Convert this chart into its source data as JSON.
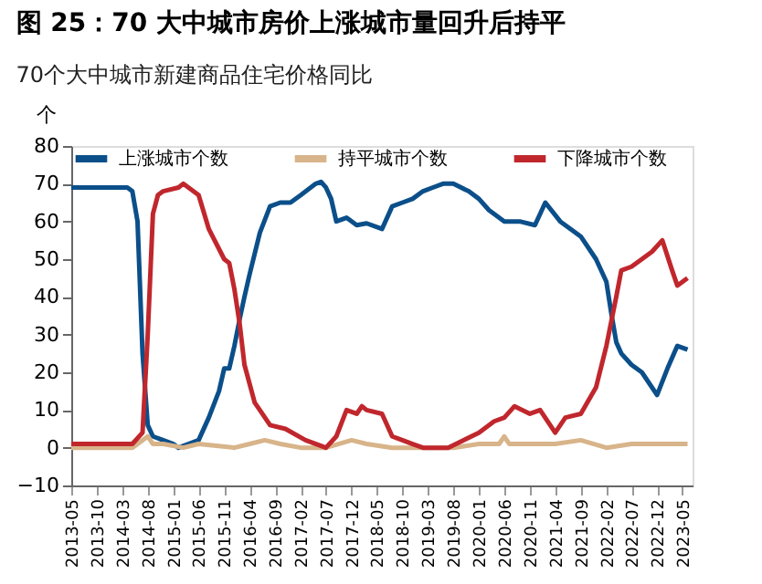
{
  "chart_data": {
    "type": "line",
    "title": "图 25：70 大中城市房价上涨城市量回升后持平",
    "subtitle": "70个大中城市新建商品住宅价格同比",
    "ylabel": "个",
    "xlim": [
      "2013-05",
      "2023-07"
    ],
    "ylim": [
      -10,
      80
    ],
    "yticks": [
      -10,
      0,
      10,
      20,
      30,
      40,
      50,
      60,
      70,
      80
    ],
    "xticks": [
      {
        "value": "2013-05",
        "label": "2013-05"
      },
      {
        "value": "2013-10",
        "label": "2013-10"
      },
      {
        "value": "2014-03",
        "label": "2014-03"
      },
      {
        "value": "2014-08",
        "label": "2014-08"
      },
      {
        "value": "2015-01",
        "label": "2015-01"
      },
      {
        "value": "2015-06",
        "label": "2015-06"
      },
      {
        "value": "2015-11",
        "label": "2015-11"
      },
      {
        "value": "2016-04",
        "label": "2016-04"
      },
      {
        "value": "2016-09",
        "label": "2016-09"
      },
      {
        "value": "2017-02",
        "label": "2017-02"
      },
      {
        "value": "2017-07",
        "label": "2017-07"
      },
      {
        "value": "2017-12",
        "label": "2017-12"
      },
      {
        "value": "2018-05",
        "label": "2018-05"
      },
      {
        "value": "2018-10",
        "label": "2018-10"
      },
      {
        "value": "2019-03",
        "label": "2019-03"
      },
      {
        "value": "2019-08",
        "label": "2019-08"
      },
      {
        "value": "2020-01",
        "label": "2020-01"
      },
      {
        "value": "2020-06",
        "label": "2020-06"
      },
      {
        "value": "2020-11",
        "label": "2020-11"
      },
      {
        "value": "2021-04",
        "label": "2021-04"
      },
      {
        "value": "2021-09",
        "label": "2021-09"
      },
      {
        "value": "2022-02",
        "label": "2022-02"
      },
      {
        "value": "2022-07",
        "label": "2022-07"
      },
      {
        "value": "2022-12",
        "label": "2022-12"
      },
      {
        "value": "2023-05",
        "label": "2023-05"
      }
    ],
    "grid": false,
    "legend": "top",
    "line_style": "solid",
    "marker": "none",
    "series": [
      {
        "name": "上涨城市个数",
        "color": "#0b4f8a",
        "x": [
          "2013-05",
          "2014-04",
          "2014-05",
          "2014-06",
          "2014-07",
          "2014-08",
          "2014-09",
          "2014-11",
          "2015-01",
          "2015-02",
          "2015-04",
          "2015-06",
          "2015-08",
          "2015-10",
          "2015-11",
          "2015-12",
          "2016-01",
          "2016-02",
          "2016-03",
          "2016-04",
          "2016-06",
          "2016-08",
          "2016-10",
          "2016-12",
          "2017-02",
          "2017-05",
          "2017-06",
          "2017-07",
          "2017-08",
          "2017-09",
          "2017-11",
          "2018-01",
          "2018-03",
          "2018-06",
          "2018-08",
          "2018-10",
          "2018-12",
          "2019-02",
          "2019-04",
          "2019-06",
          "2019-08",
          "2019-11",
          "2020-01",
          "2020-03",
          "2020-06",
          "2020-09",
          "2020-12",
          "2021-02",
          "2021-05",
          "2021-09",
          "2021-12",
          "2022-02",
          "2022-03",
          "2022-04",
          "2022-05",
          "2022-07",
          "2022-09",
          "2022-12",
          "2023-02",
          "2023-04",
          "2023-06"
        ],
        "values": [
          69,
          69,
          68,
          60,
          25,
          6,
          3,
          2,
          1,
          0,
          1,
          2,
          8,
          15,
          21,
          21,
          27,
          34,
          40,
          46,
          57,
          64,
          65,
          65,
          67,
          70,
          70.5,
          69,
          66,
          60,
          61,
          59,
          59.5,
          58,
          64,
          65,
          66,
          68,
          69,
          70,
          70,
          68,
          66,
          63,
          60,
          60,
          59,
          65,
          60,
          56,
          50,
          44,
          36,
          28,
          25,
          22,
          20,
          14,
          21,
          27,
          26
        ]
      },
      {
        "name": "持平城市个数",
        "color": "#d8b48a",
        "x": [
          "2013-05",
          "2014-05",
          "2014-08",
          "2014-09",
          "2014-11",
          "2015-03",
          "2015-06",
          "2016-01",
          "2016-04",
          "2016-07",
          "2016-10",
          "2017-02",
          "2017-07",
          "2017-12",
          "2018-03",
          "2018-08",
          "2019-03",
          "2019-08",
          "2020-01",
          "2020-05",
          "2020-06",
          "2020-07",
          "2020-11",
          "2021-04",
          "2021-09",
          "2022-02",
          "2022-07",
          "2022-12",
          "2023-06"
        ],
        "values": [
          0,
          0,
          3,
          1,
          1,
          0,
          1,
          0,
          1,
          2,
          1,
          0,
          0,
          2,
          1,
          0,
          0,
          0,
          1,
          1,
          3,
          1,
          1,
          1,
          2,
          0,
          1,
          1,
          1
        ]
      },
      {
        "name": "下降城市个数",
        "color": "#c0272d",
        "x": [
          "2013-05",
          "2014-05",
          "2014-07",
          "2014-08",
          "2014-09",
          "2014-10",
          "2014-11",
          "2015-02",
          "2015-03",
          "2015-06",
          "2015-08",
          "2015-11",
          "2015-12",
          "2016-01",
          "2016-02",
          "2016-03",
          "2016-05",
          "2016-06",
          "2016-08",
          "2016-11",
          "2017-03",
          "2017-07",
          "2017-09",
          "2017-11",
          "2018-01",
          "2018-02",
          "2018-03",
          "2018-06",
          "2018-08",
          "2018-10",
          "2018-12",
          "2019-02",
          "2019-07",
          "2019-10",
          "2020-01",
          "2020-04",
          "2020-06",
          "2020-08",
          "2020-11",
          "2021-01",
          "2021-04",
          "2021-06",
          "2021-09",
          "2021-12",
          "2022-02",
          "2022-04",
          "2022-05",
          "2022-07",
          "2022-09",
          "2022-11",
          "2023-01",
          "2023-03",
          "2023-04",
          "2023-06"
        ],
        "values": [
          1,
          1,
          4,
          30,
          62,
          67,
          68,
          69,
          70,
          67,
          58,
          50,
          49,
          42,
          33,
          22,
          12,
          10,
          6,
          5,
          2,
          0,
          3,
          10,
          9,
          11,
          10,
          9,
          3,
          2,
          1,
          0,
          0,
          2,
          4,
          7,
          8,
          11,
          9,
          10,
          4,
          8,
          9,
          16,
          27,
          40,
          47,
          48,
          50,
          52,
          55,
          47,
          43,
          45
        ]
      }
    ]
  }
}
